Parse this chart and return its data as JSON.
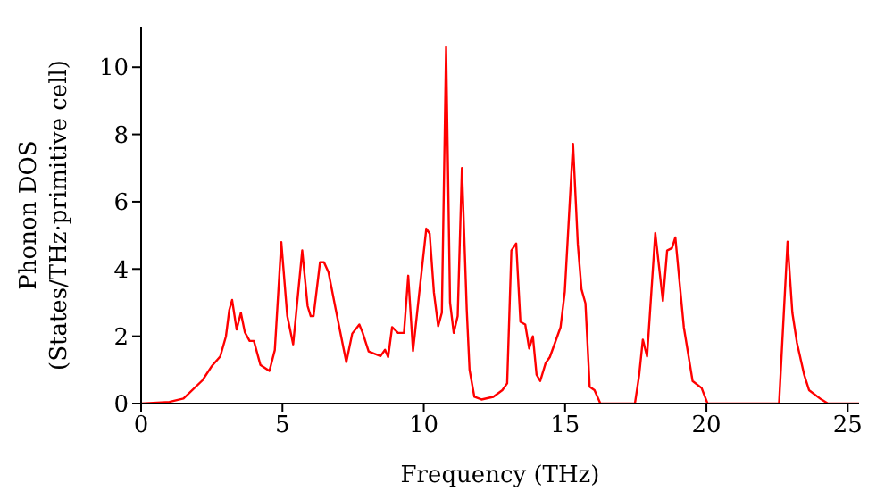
{
  "chart_data": {
    "type": "line",
    "xlabel": "Frequency (THz)",
    "ylabel": "Phonon DOS\n(States/THz·primitive cell)",
    "xlim": [
      0,
      25.4
    ],
    "xticks": [
      0,
      5,
      10,
      15,
      20,
      25
    ],
    "ylim": [
      0,
      11.2
    ],
    "yticks": [
      0,
      2,
      4,
      6,
      8,
      10
    ],
    "grid": false,
    "legend": false,
    "marker": "none",
    "line_style": "solid",
    "series": [
      {
        "color": "#ff0000",
        "x": [
          0,
          1,
          1.5,
          2.17,
          2.49,
          2.8,
          3.0,
          3.12,
          3.22,
          3.38,
          3.53,
          3.67,
          3.84,
          3.99,
          4.22,
          4.54,
          4.73,
          4.96,
          5.17,
          5.38,
          5.7,
          5.89,
          6.0,
          6.1,
          6.33,
          6.47,
          6.63,
          6.89,
          7.26,
          7.47,
          7.72,
          7.84,
          8.05,
          8.47,
          8.63,
          8.74,
          8.88,
          9.09,
          9.3,
          9.45,
          9.62,
          9.83,
          10.09,
          10.21,
          10.36,
          10.51,
          10.64,
          10.79,
          10.93,
          11.06,
          11.2,
          11.35,
          11.52,
          11.62,
          11.79,
          12.04,
          12.46,
          12.78,
          12.95,
          13.1,
          13.27,
          13.42,
          13.59,
          13.73,
          13.86,
          13.99,
          14.12,
          14.31,
          14.46,
          14.84,
          14.99,
          15.28,
          15.45,
          15.58,
          15.72,
          15.87,
          16.04,
          16.25,
          17.47,
          17.62,
          17.75,
          17.9,
          18.19,
          18.46,
          18.61,
          18.78,
          18.9,
          19.2,
          19.51,
          19.83,
          20.04,
          22.57,
          22.87,
          23.04,
          23.2,
          23.46,
          23.63,
          24.05,
          24.3,
          25.4
        ],
        "values": [
          0,
          0.05,
          0.15,
          0.69,
          1.1,
          1.4,
          1.99,
          2.78,
          3.08,
          2.2,
          2.7,
          2.12,
          1.86,
          1.86,
          1.15,
          0.97,
          1.59,
          4.8,
          2.61,
          1.76,
          4.55,
          2.9,
          2.6,
          2.6,
          4.2,
          4.2,
          3.9,
          2.78,
          1.23,
          2.08,
          2.35,
          2.1,
          1.55,
          1.41,
          1.6,
          1.38,
          2.27,
          2.1,
          2.1,
          3.8,
          1.56,
          3.2,
          5.2,
          5.05,
          3.3,
          2.3,
          2.7,
          10.6,
          3.0,
          2.1,
          2.6,
          7.0,
          2.8,
          1.0,
          0.2,
          0.12,
          0.2,
          0.4,
          0.6,
          4.55,
          4.76,
          2.43,
          2.35,
          1.64,
          2.0,
          0.86,
          0.67,
          1.2,
          1.38,
          2.27,
          3.33,
          7.72,
          4.74,
          3.4,
          2.98,
          0.5,
          0.4,
          0,
          0,
          0.84,
          1.9,
          1.4,
          5.07,
          3.05,
          4.55,
          4.62,
          4.94,
          2.27,
          0.67,
          0.46,
          0,
          0,
          4.81,
          2.7,
          1.82,
          0.85,
          0.4,
          0.13,
          0,
          0
        ]
      }
    ]
  }
}
